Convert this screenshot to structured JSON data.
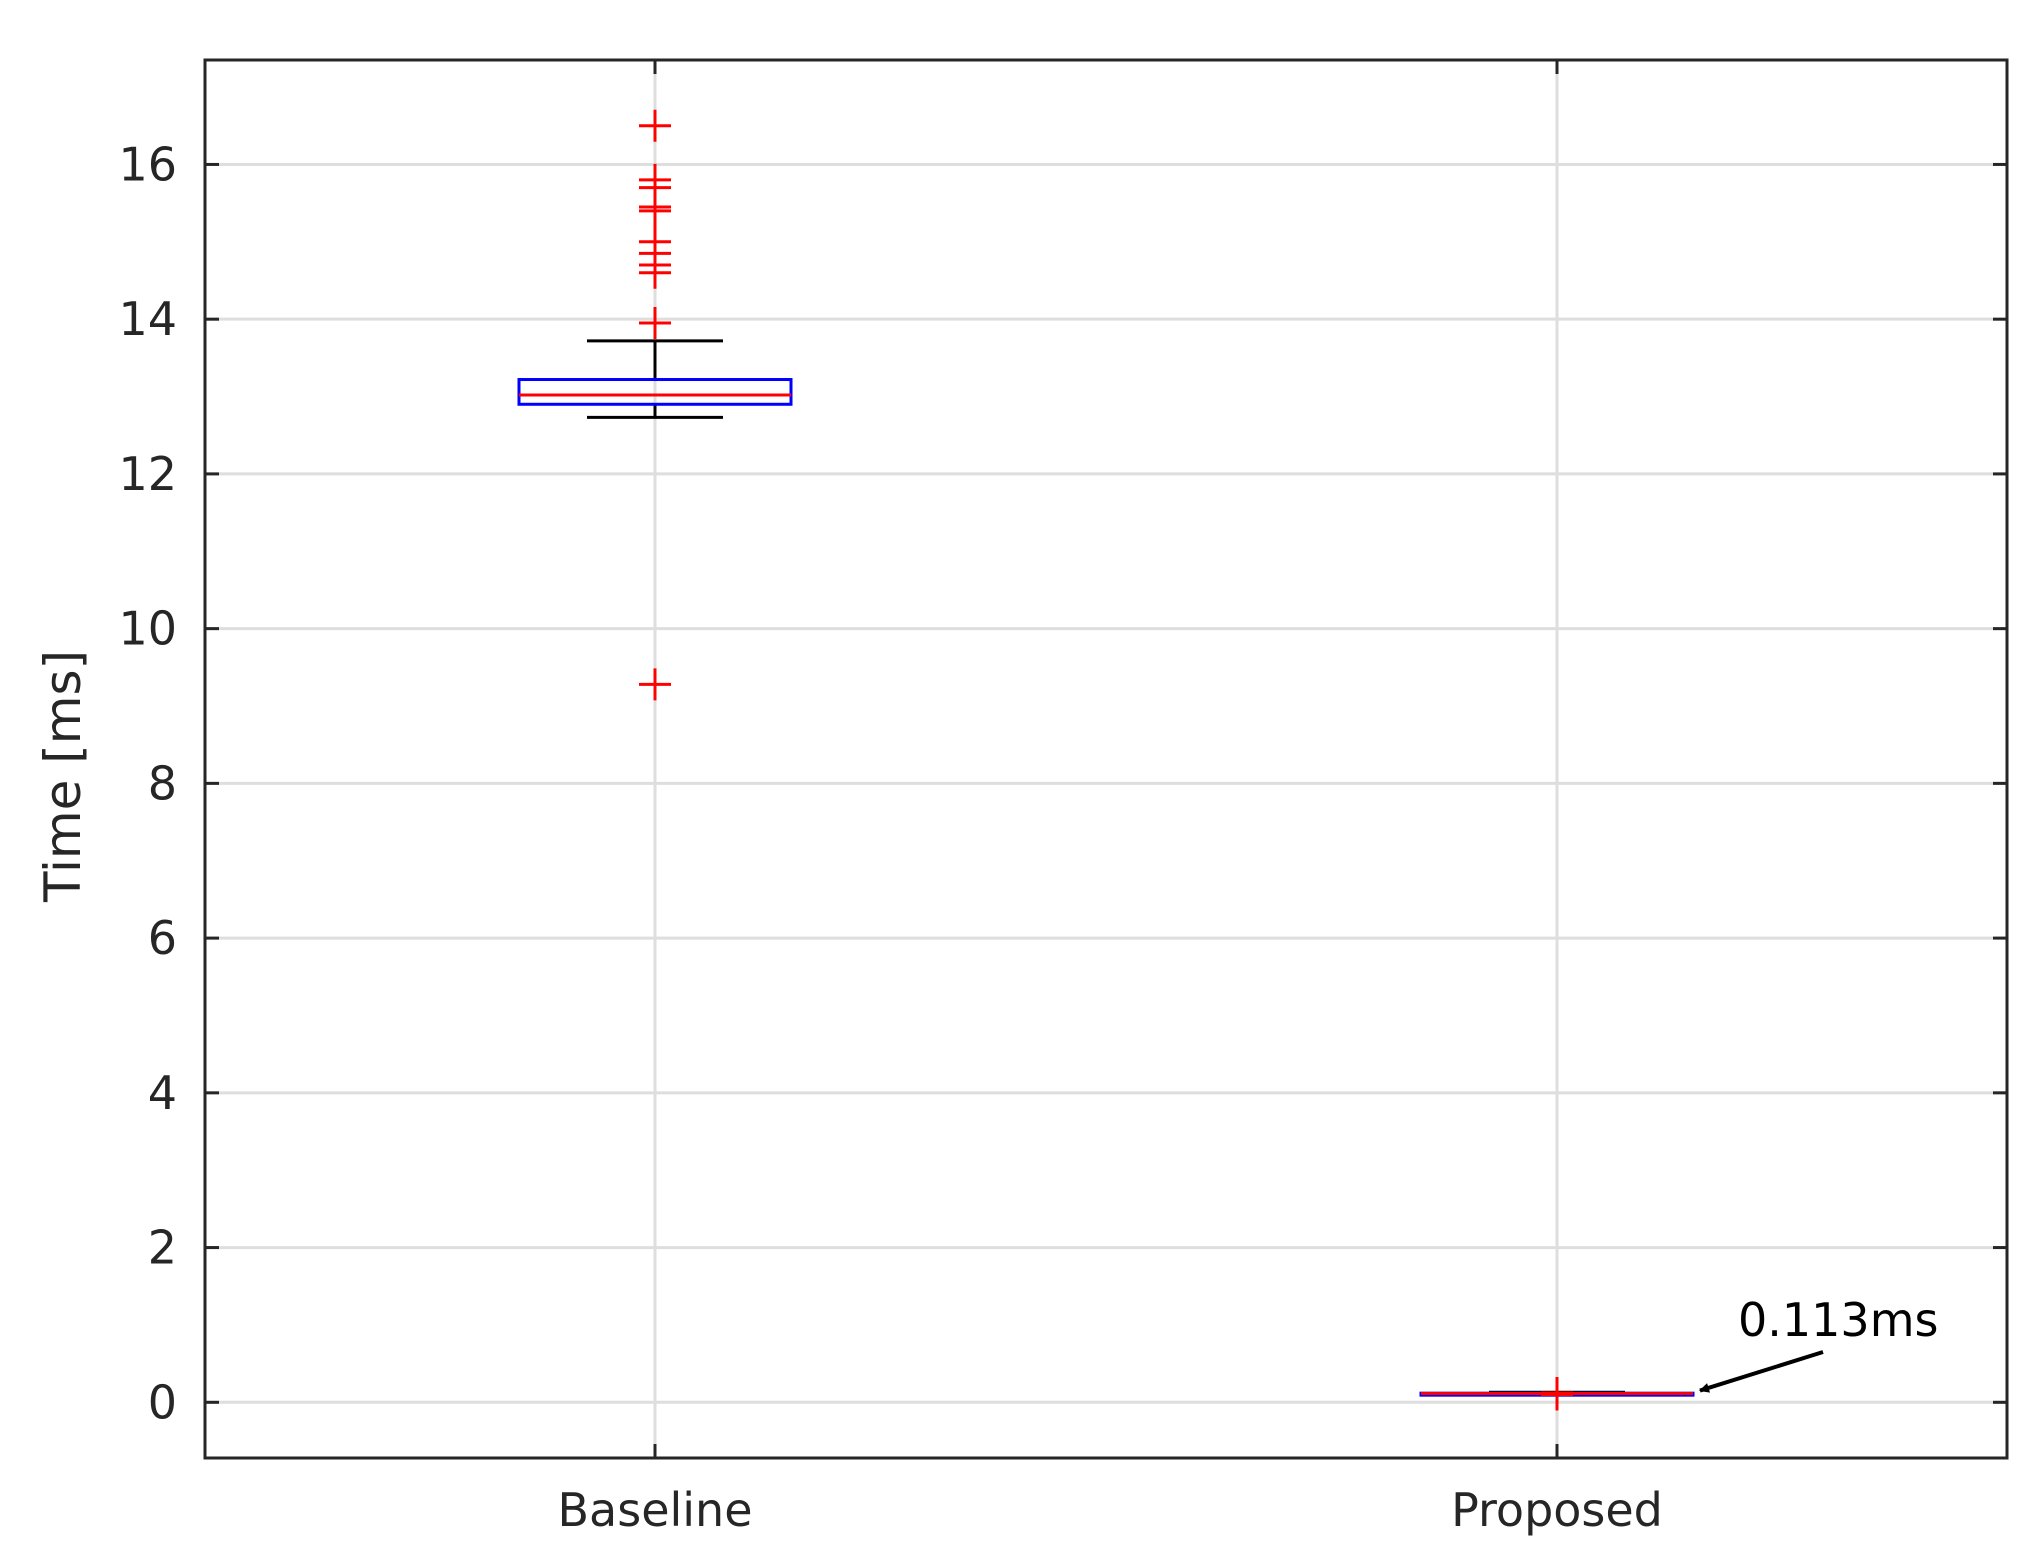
{
  "chart_data": {
    "type": "box",
    "title": "",
    "xlabel": "",
    "ylabel": "Time [ms]",
    "ylim": [
      -0.72,
      17.35
    ],
    "yticks": [
      0,
      2,
      4,
      6,
      8,
      10,
      12,
      14,
      16
    ],
    "categories": [
      "Baseline",
      "Proposed"
    ],
    "grid": true,
    "colors": {
      "box": "#0000ff",
      "median": "#ff0000",
      "whisker": "#000000",
      "outlier": "#ff0000",
      "grid": "#dedede",
      "axes": "#262626"
    },
    "boxes": [
      {
        "category": "Baseline",
        "q1": 12.9,
        "median": 13.02,
        "q3": 13.22,
        "whisker_low": 12.73,
        "whisker_high": 13.72,
        "outliers": [
          16.5,
          15.8,
          15.7,
          15.45,
          15.4,
          15.0,
          14.85,
          14.7,
          14.6,
          13.95,
          9.28
        ]
      },
      {
        "category": "Proposed",
        "q1": 0.108,
        "median": 0.113,
        "q3": 0.118,
        "whisker_low": 0.1,
        "whisker_high": 0.13,
        "outliers": [
          0.1,
          0.12
        ]
      }
    ],
    "annotation": {
      "text": "0.113ms",
      "value": 0.113,
      "category": "Proposed"
    }
  }
}
